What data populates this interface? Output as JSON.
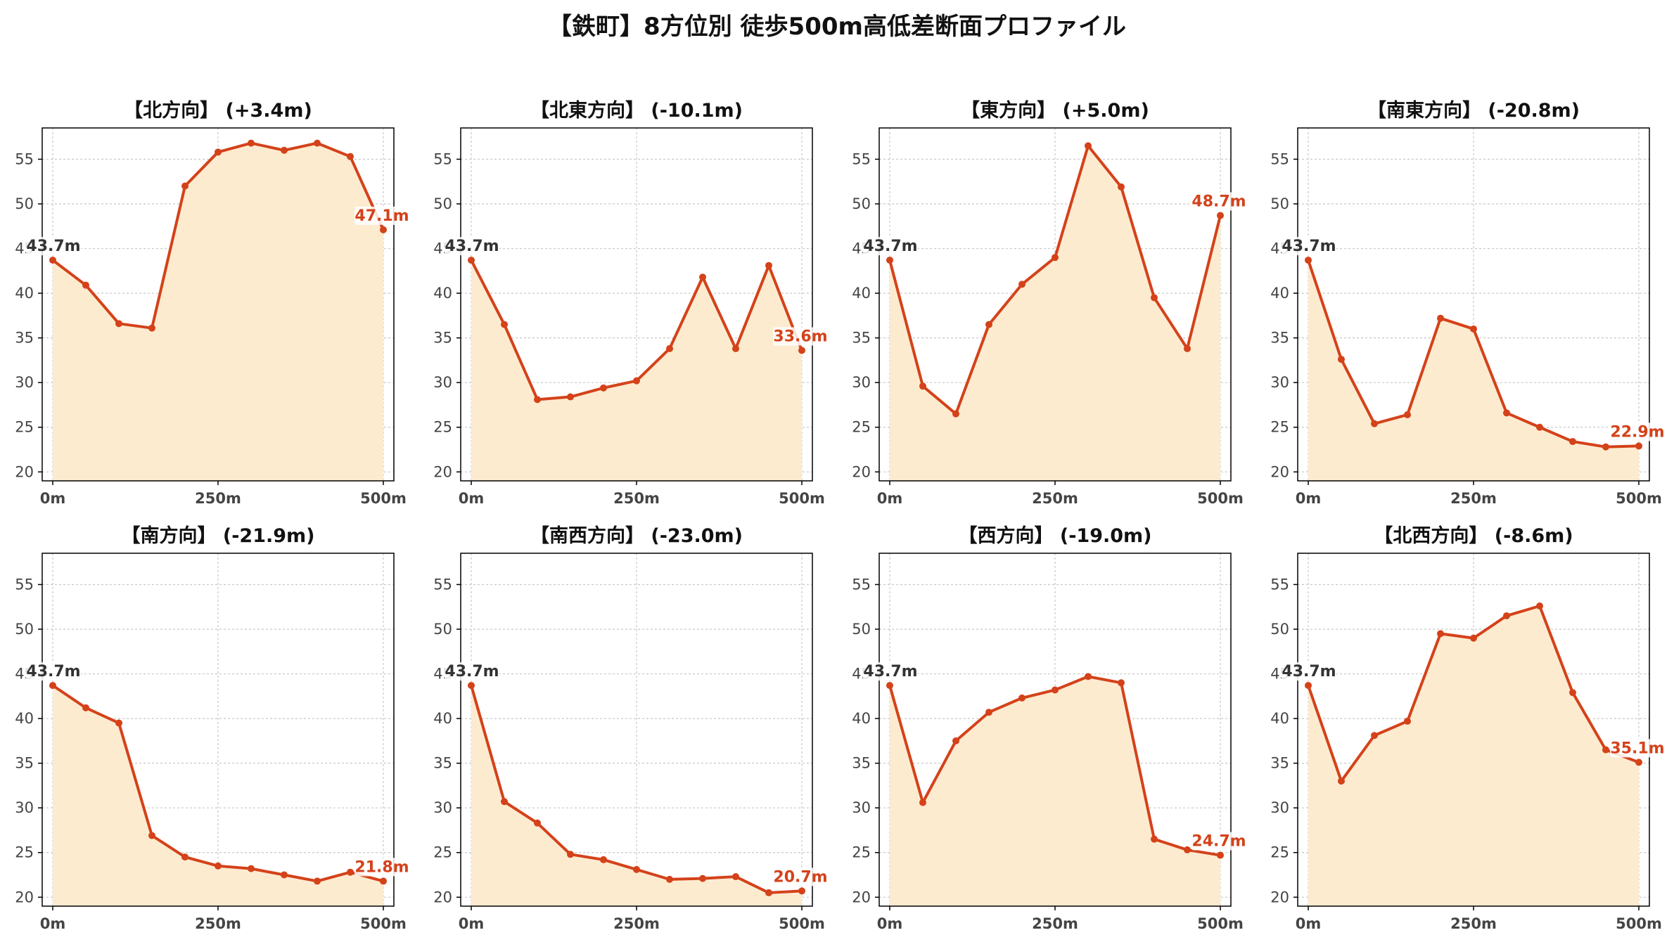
{
  "title": "【鉄町】8方位別 徒歩500m高低差断面プロファイル",
  "colors": {
    "line": "#d4421a",
    "fill": "#fdebd0",
    "start_label": "#333333",
    "end_label": "#d4421a",
    "grid": "#c8c8c8",
    "axis": "#000000",
    "tick_text": "#444444"
  },
  "chart_data": [
    {
      "type": "area",
      "title": "【北方向】 (+3.4m)",
      "x": [
        0,
        50,
        100,
        150,
        200,
        250,
        300,
        350,
        400,
        450,
        500
      ],
      "x_tick_labels": [
        "0m",
        "250m",
        "500m"
      ],
      "x_ticks": [
        0,
        250,
        500
      ],
      "y_ticks": [
        20,
        25,
        30,
        35,
        40,
        45,
        50,
        55
      ],
      "ylim": [
        19,
        58.5
      ],
      "values": [
        43.7,
        40.9,
        36.6,
        36.1,
        52.0,
        55.8,
        56.8,
        56.0,
        56.8,
        55.3,
        47.1
      ],
      "start_label": "43.7m",
      "end_label": "47.1m",
      "grid": true
    },
    {
      "type": "area",
      "title": "【北東方向】 (-10.1m)",
      "x": [
        0,
        50,
        100,
        150,
        200,
        250,
        300,
        350,
        400,
        450,
        500
      ],
      "x_tick_labels": [
        "0m",
        "250m",
        "500m"
      ],
      "x_ticks": [
        0,
        250,
        500
      ],
      "y_ticks": [
        20,
        25,
        30,
        35,
        40,
        45,
        50,
        55
      ],
      "ylim": [
        19,
        58.5
      ],
      "values": [
        43.7,
        36.5,
        28.1,
        28.4,
        29.4,
        30.2,
        33.8,
        41.8,
        33.8,
        43.1,
        33.6
      ],
      "start_label": "43.7m",
      "end_label": "33.6m",
      "grid": true
    },
    {
      "type": "area",
      "title": "【東方向】 (+5.0m)",
      "x": [
        0,
        50,
        100,
        150,
        200,
        250,
        300,
        350,
        400,
        450,
        500
      ],
      "x_tick_labels": [
        "0m",
        "250m",
        "500m"
      ],
      "x_ticks": [
        0,
        250,
        500
      ],
      "y_ticks": [
        20,
        25,
        30,
        35,
        40,
        45,
        50,
        55
      ],
      "ylim": [
        19,
        58.5
      ],
      "values": [
        43.7,
        29.6,
        26.5,
        36.5,
        41.0,
        44.0,
        56.5,
        51.9,
        39.5,
        33.8,
        48.7
      ],
      "start_label": "43.7m",
      "end_label": "48.7m",
      "grid": true
    },
    {
      "type": "area",
      "title": "【南東方向】 (-20.8m)",
      "x": [
        0,
        50,
        100,
        150,
        200,
        250,
        300,
        350,
        400,
        450,
        500
      ],
      "x_tick_labels": [
        "0m",
        "250m",
        "500m"
      ],
      "x_ticks": [
        0,
        250,
        500
      ],
      "y_ticks": [
        20,
        25,
        30,
        35,
        40,
        45,
        50,
        55
      ],
      "ylim": [
        19,
        58.5
      ],
      "values": [
        43.7,
        32.6,
        25.4,
        26.4,
        37.2,
        36.0,
        26.6,
        25.0,
        23.4,
        22.8,
        22.9
      ],
      "start_label": "43.7m",
      "end_label": "22.9m",
      "grid": true
    },
    {
      "type": "area",
      "title": "【南方向】 (-21.9m)",
      "x": [
        0,
        50,
        100,
        150,
        200,
        250,
        300,
        350,
        400,
        450,
        500
      ],
      "x_tick_labels": [
        "0m",
        "250m",
        "500m"
      ],
      "x_ticks": [
        0,
        250,
        500
      ],
      "y_ticks": [
        20,
        25,
        30,
        35,
        40,
        45,
        50,
        55
      ],
      "ylim": [
        19,
        58.5
      ],
      "values": [
        43.7,
        41.2,
        39.5,
        26.9,
        24.5,
        23.5,
        23.2,
        22.5,
        21.8,
        22.8,
        21.8
      ],
      "start_label": "43.7m",
      "end_label": "21.8m",
      "grid": true
    },
    {
      "type": "area",
      "title": "【南西方向】 (-23.0m)",
      "x": [
        0,
        50,
        100,
        150,
        200,
        250,
        300,
        350,
        400,
        450,
        500
      ],
      "x_tick_labels": [
        "0m",
        "250m",
        "500m"
      ],
      "x_ticks": [
        0,
        250,
        500
      ],
      "y_ticks": [
        20,
        25,
        30,
        35,
        40,
        45,
        50,
        55
      ],
      "ylim": [
        19,
        58.5
      ],
      "values": [
        43.7,
        30.7,
        28.3,
        24.8,
        24.2,
        23.1,
        22.0,
        22.1,
        22.3,
        20.5,
        20.7
      ],
      "start_label": "43.7m",
      "end_label": "20.7m",
      "grid": true
    },
    {
      "type": "area",
      "title": "【西方向】 (-19.0m)",
      "x": [
        0,
        50,
        100,
        150,
        200,
        250,
        300,
        350,
        400,
        450,
        500
      ],
      "x_tick_labels": [
        "0m",
        "250m",
        "500m"
      ],
      "x_ticks": [
        0,
        250,
        500
      ],
      "y_ticks": [
        20,
        25,
        30,
        35,
        40,
        45,
        50,
        55
      ],
      "ylim": [
        19,
        58.5
      ],
      "values": [
        43.7,
        30.6,
        37.5,
        40.7,
        42.3,
        43.2,
        44.7,
        44.0,
        26.5,
        25.3,
        24.7
      ],
      "start_label": "43.7m",
      "end_label": "24.7m",
      "grid": true
    },
    {
      "type": "area",
      "title": "【北西方向】 (-8.6m)",
      "x": [
        0,
        50,
        100,
        150,
        200,
        250,
        300,
        350,
        400,
        450,
        500
      ],
      "x_tick_labels": [
        "0m",
        "250m",
        "500m"
      ],
      "x_ticks": [
        0,
        250,
        500
      ],
      "y_ticks": [
        20,
        25,
        30,
        35,
        40,
        45,
        50,
        55
      ],
      "ylim": [
        19,
        58.5
      ],
      "values": [
        43.7,
        33.0,
        38.1,
        39.7,
        49.5,
        49.0,
        51.5,
        52.6,
        42.9,
        36.5,
        35.1
      ],
      "start_label": "43.7m",
      "end_label": "35.1m",
      "grid": true
    }
  ]
}
